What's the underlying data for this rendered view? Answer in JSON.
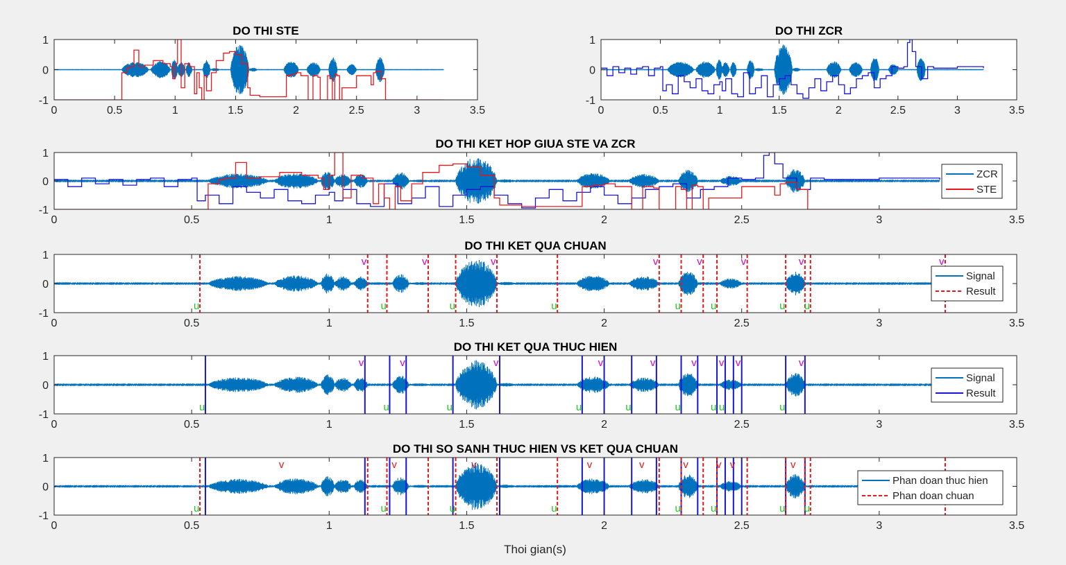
{
  "figure": {
    "xlabel": "Thoi gian(s)",
    "colors": {
      "signal": "#0072BD",
      "ste": "#E8161B",
      "zcr": "#1515D8",
      "result_std": "#E8161B",
      "result_impl": "#1515D8",
      "voiced_label": "#D100D1",
      "unvoiced_label": "#1EC81E",
      "axes_bg": "#FFFFFF",
      "figure_bg": "#F0F0F0"
    },
    "voiced_mark": "v",
    "unvoiced_mark": "u"
  },
  "chart_data": [
    {
      "id": "ste",
      "type": "line",
      "title": "DO THI STE",
      "xlim": [
        0,
        3.5
      ],
      "ylim": [
        -1,
        1
      ],
      "xticks": [
        "0",
        "0.5",
        "1",
        "1.5",
        "2",
        "2.5",
        "3",
        "3.5"
      ],
      "yticks": [
        "-1",
        "0",
        "1"
      ],
      "signal_end": 3.22,
      "series": [
        {
          "name": "STE",
          "color": "ste",
          "x": [
            0,
            0.55,
            0.56,
            0.6,
            0.62,
            0.66,
            0.7,
            0.75,
            0.82,
            0.9,
            0.96,
            0.98,
            1.0,
            1.02,
            1.05,
            1.08,
            1.12,
            1.16,
            1.18,
            1.2,
            1.22,
            1.24,
            1.26,
            1.3,
            1.34,
            1.4,
            1.45,
            1.5,
            1.55,
            1.6,
            1.62,
            1.7,
            1.9,
            1.92,
            1.96,
            2.0,
            2.04,
            2.1,
            2.14,
            2.18,
            2.2,
            2.24,
            2.26,
            2.28,
            2.3,
            2.32,
            2.34,
            2.36,
            2.38,
            2.5,
            2.62,
            2.64,
            2.66,
            2.7,
            2.74,
            2.76,
            3.22
          ],
          "y": [
            -1,
            -1,
            -0.1,
            0.05,
            0.1,
            0.65,
            0.1,
            0.15,
            0.3,
            0.2,
            0.1,
            -0.3,
            0.2,
            1.0,
            -0.6,
            0.2,
            0.1,
            -0.8,
            -0.1,
            -0.6,
            -1,
            -0.2,
            -0.7,
            -0.1,
            0.3,
            0.55,
            0.6,
            0.5,
            0.2,
            -0.6,
            -0.85,
            -0.9,
            -0.9,
            -0.2,
            -0.15,
            -0.1,
            -0.2,
            -1,
            -0.2,
            -0.25,
            -1,
            -1,
            -0.2,
            -0.3,
            -1,
            -0.15,
            -0.2,
            -1,
            -0.6,
            -0.2,
            -0.5,
            -0.1,
            -0.05,
            -0.3,
            -1,
            -1,
            -1
          ]
        }
      ]
    },
    {
      "id": "zcr",
      "type": "line",
      "title": "DO THI ZCR",
      "xlim": [
        0,
        3.5
      ],
      "ylim": [
        -1,
        1
      ],
      "xticks": [
        "0",
        "0.5",
        "1",
        "1.5",
        "2",
        "2.5",
        "3",
        "3.5"
      ],
      "yticks": [
        "-1",
        "0",
        "1"
      ],
      "signal_end": 3.22,
      "series": [
        {
          "name": "ZCR",
          "color": "zcr",
          "x": [
            0,
            0.05,
            0.1,
            0.15,
            0.2,
            0.25,
            0.3,
            0.35,
            0.4,
            0.45,
            0.5,
            0.52,
            0.55,
            0.6,
            0.65,
            0.7,
            0.75,
            0.8,
            0.85,
            0.9,
            0.95,
            1.0,
            1.02,
            1.05,
            1.1,
            1.15,
            1.2,
            1.25,
            1.3,
            1.35,
            1.4,
            1.45,
            1.5,
            1.55,
            1.6,
            1.65,
            1.7,
            1.75,
            1.8,
            1.85,
            1.9,
            1.95,
            2.0,
            2.05,
            2.1,
            2.15,
            2.2,
            2.25,
            2.3,
            2.35,
            2.4,
            2.45,
            2.5,
            2.55,
            2.58,
            2.6,
            2.62,
            2.65,
            2.7,
            2.75,
            2.8,
            3.0,
            3.22
          ],
          "y": [
            0.05,
            -0.2,
            0.1,
            -0.1,
            0.05,
            -0.15,
            0.05,
            0.1,
            -0.2,
            0.05,
            0.1,
            -0.7,
            -0.5,
            -0.8,
            -0.2,
            -0.4,
            -0.6,
            -0.3,
            -0.7,
            -0.8,
            -0.5,
            -0.4,
            -0.7,
            -0.3,
            -0.8,
            -0.9,
            -0.1,
            -0.8,
            -0.6,
            -0.2,
            -0.9,
            -0.5,
            -0.3,
            -0.2,
            -0.5,
            -0.8,
            -0.95,
            -0.6,
            -0.3,
            -0.7,
            -0.4,
            -0.2,
            -0.5,
            -0.8,
            -0.6,
            -0.3,
            -0.2,
            -0.1,
            -0.6,
            -0.3,
            -0.2,
            0.1,
            0.05,
            0.1,
            0.9,
            1.0,
            0.6,
            0.1,
            -0.3,
            0.1,
            0.05,
            0.1,
            0.05
          ]
        }
      ]
    },
    {
      "id": "ketHop",
      "type": "line",
      "title": "DO THI KET HOP GIUA STE VA ZCR",
      "xlim": [
        0,
        3.5
      ],
      "ylim": [
        -1,
        1
      ],
      "xticks": [
        "0",
        "0.5",
        "1",
        "1.5",
        "2",
        "2.5",
        "3",
        "3.5"
      ],
      "yticks": [
        "-1",
        "0",
        "1"
      ],
      "signal_end": 3.22,
      "legend": {
        "position": "right",
        "entries": [
          {
            "label": "ZCR",
            "color": "signal",
            "dash": false
          },
          {
            "label": "STE",
            "color": "ste",
            "dash": false
          }
        ]
      },
      "series": [
        {
          "name": "ZCR",
          "color": "zcr",
          "x": [
            0,
            0.05,
            0.1,
            0.15,
            0.2,
            0.25,
            0.3,
            0.35,
            0.4,
            0.45,
            0.5,
            0.52,
            0.55,
            0.6,
            0.65,
            0.7,
            0.75,
            0.8,
            0.85,
            0.9,
            0.95,
            1.0,
            1.02,
            1.05,
            1.1,
            1.15,
            1.2,
            1.25,
            1.3,
            1.35,
            1.4,
            1.45,
            1.5,
            1.55,
            1.6,
            1.65,
            1.7,
            1.75,
            1.8,
            1.85,
            1.9,
            1.95,
            2.0,
            2.05,
            2.1,
            2.15,
            2.2,
            2.25,
            2.3,
            2.35,
            2.4,
            2.45,
            2.5,
            2.55,
            2.58,
            2.6,
            2.62,
            2.65,
            2.7,
            2.75,
            2.8,
            3.0,
            3.22
          ],
          "y": [
            0.05,
            -0.2,
            0.1,
            -0.1,
            0.05,
            -0.15,
            0.05,
            0.1,
            -0.2,
            0.05,
            0.1,
            -0.7,
            -0.5,
            -0.8,
            -0.2,
            -0.4,
            -0.6,
            -0.3,
            -0.7,
            -0.8,
            -0.5,
            -0.4,
            -0.7,
            -0.3,
            -0.8,
            -0.9,
            -0.1,
            -0.8,
            -0.6,
            -0.2,
            -0.9,
            -0.5,
            -0.3,
            -0.2,
            -0.5,
            -0.8,
            -0.95,
            -0.6,
            -0.3,
            -0.7,
            -0.4,
            -0.2,
            -0.5,
            -0.8,
            -0.6,
            -0.3,
            -0.2,
            -0.1,
            -0.6,
            -0.3,
            -0.2,
            0.1,
            0.05,
            0.1,
            0.9,
            1.0,
            0.6,
            0.1,
            -0.3,
            0.1,
            0.05,
            0.1,
            0.05
          ]
        },
        {
          "name": "STE",
          "color": "ste",
          "x": [
            0,
            0.55,
            0.56,
            0.6,
            0.62,
            0.66,
            0.7,
            0.75,
            0.82,
            0.9,
            0.96,
            0.98,
            1.0,
            1.02,
            1.05,
            1.08,
            1.12,
            1.16,
            1.18,
            1.2,
            1.22,
            1.24,
            1.26,
            1.3,
            1.34,
            1.4,
            1.45,
            1.5,
            1.55,
            1.6,
            1.62,
            1.7,
            1.9,
            1.92,
            1.96,
            2.0,
            2.04,
            2.1,
            2.14,
            2.18,
            2.2,
            2.24,
            2.26,
            2.28,
            2.3,
            2.32,
            2.34,
            2.36,
            2.38,
            2.5,
            2.62,
            2.64,
            2.66,
            2.7,
            2.74,
            2.76,
            3.22
          ],
          "y": [
            -1,
            -1,
            -0.1,
            0.05,
            0.1,
            0.65,
            0.1,
            0.15,
            0.3,
            0.2,
            0.1,
            -0.3,
            0.2,
            1.0,
            -0.6,
            0.2,
            0.1,
            -0.8,
            -0.1,
            -0.6,
            -1,
            -0.2,
            -0.7,
            -0.1,
            0.3,
            0.55,
            0.6,
            0.5,
            0.2,
            -0.6,
            -0.85,
            -0.9,
            -0.9,
            -0.2,
            -0.15,
            -0.1,
            -0.2,
            -1,
            -0.2,
            -0.25,
            -1,
            -1,
            -0.2,
            -0.3,
            -1,
            -0.15,
            -0.2,
            -1,
            -0.6,
            -0.2,
            -0.5,
            -0.1,
            -0.05,
            -0.3,
            -1,
            -1,
            -1
          ]
        }
      ]
    },
    {
      "id": "chuan",
      "type": "line",
      "title": "DO THI KET QUA CHUAN",
      "xlim": [
        0,
        3.5
      ],
      "ylim": [
        -1,
        1
      ],
      "xticks": [
        "0",
        "0.5",
        "1",
        "1.5",
        "2",
        "2.5",
        "3",
        "3.5"
      ],
      "yticks": [
        "-1",
        "0",
        "1"
      ],
      "signal_end": 3.22,
      "legend": {
        "position": "right",
        "entries": [
          {
            "label": "Signal",
            "color": "signal",
            "dash": false
          },
          {
            "label": "Result",
            "color": "result_std",
            "dash": true
          }
        ]
      },
      "std_boundaries": [
        0.53,
        1.14,
        1.21,
        1.36,
        1.46,
        1.61,
        1.83,
        2.2,
        2.28,
        2.36,
        2.41,
        2.52,
        2.66,
        2.73,
        2.75,
        3.24
      ],
      "impl_boundaries": [],
      "unvoiced_at": [
        0.53,
        1.21,
        1.46,
        1.83,
        2.28,
        2.41,
        2.66,
        2.75
      ],
      "voiced_at": [
        1.14,
        1.36,
        1.61,
        2.2,
        2.36,
        2.52,
        2.73,
        3.24
      ]
    },
    {
      "id": "thucHien",
      "type": "line",
      "title": "DO THI KET QUA THUC HIEN",
      "xlim": [
        0,
        3.5
      ],
      "ylim": [
        -1,
        1
      ],
      "xticks": [
        "0",
        "0.5",
        "1",
        "1.5",
        "2",
        "2.5",
        "3",
        "3.5"
      ],
      "yticks": [
        "-1",
        "0",
        "1"
      ],
      "signal_end": 3.22,
      "legend": {
        "position": "right",
        "entries": [
          {
            "label": "Signal",
            "color": "signal",
            "dash": false
          },
          {
            "label": "Result",
            "color": "result_impl",
            "dash": false
          }
        ]
      },
      "std_boundaries": [],
      "impl_boundaries": [
        0.55,
        1.13,
        1.22,
        1.28,
        1.45,
        1.62,
        1.92,
        2.0,
        2.1,
        2.19,
        2.28,
        2.34,
        2.41,
        2.44,
        2.47,
        2.5,
        2.66,
        2.73
      ],
      "unvoiced_at": [
        0.55,
        1.22,
        1.45,
        1.92,
        2.1,
        2.28,
        2.41,
        2.44,
        2.66
      ],
      "voiced_at": [
        1.13,
        1.28,
        1.62,
        2.0,
        2.19,
        2.34,
        2.44,
        2.5,
        2.73
      ]
    },
    {
      "id": "soSanh",
      "type": "line",
      "title": "DO THI SO SANH THUC HIEN VS KET QUA CHUAN",
      "xlim": [
        0,
        3.5
      ],
      "ylim": [
        -1,
        1
      ],
      "xticks": [
        "0",
        "0.5",
        "1",
        "1.5",
        "2",
        "2.5",
        "3",
        "3.5"
      ],
      "yticks": [
        "-1",
        "0",
        "1"
      ],
      "signal_end": 3.22,
      "legend": {
        "position": "right",
        "entries": [
          {
            "label": "Phan doan thuc hien",
            "color": "signal",
            "dash": false
          },
          {
            "label": "Phan doan chuan",
            "color": "result_std",
            "dash": true
          }
        ]
      },
      "std_boundaries": [
        0.53,
        1.14,
        1.21,
        1.36,
        1.46,
        1.61,
        1.83,
        2.2,
        2.28,
        2.36,
        2.41,
        2.52,
        2.66,
        2.73,
        2.75,
        3.24
      ],
      "impl_boundaries": [
        0.55,
        1.13,
        1.22,
        1.28,
        1.45,
        1.62,
        1.92,
        2.0,
        2.1,
        2.19,
        2.28,
        2.34,
        2.41,
        2.44,
        2.47,
        2.5,
        2.66,
        2.73
      ],
      "unvoiced_at": [
        0.53,
        1.21,
        1.46,
        1.83,
        2.28,
        2.41,
        2.66,
        2.75
      ],
      "voiced_at": [
        0.84,
        1.25,
        1.54,
        1.96,
        2.15,
        2.31,
        2.43,
        2.48,
        2.7
      ]
    }
  ]
}
